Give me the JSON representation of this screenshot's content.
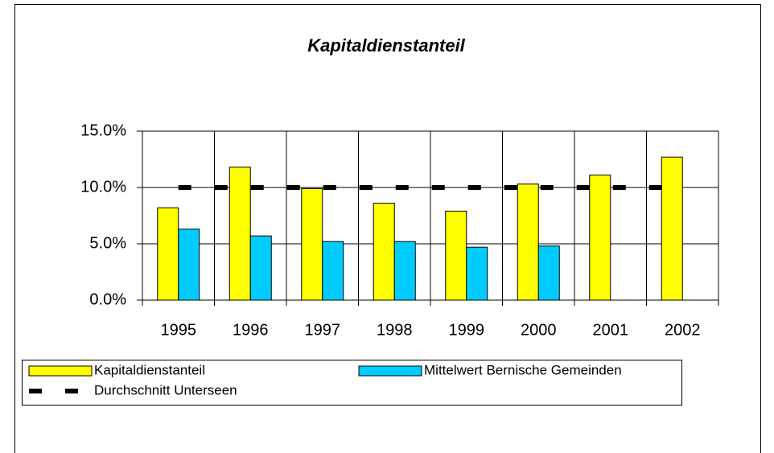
{
  "chart_data": {
    "type": "bar",
    "title": "Kapitaldienstanteil",
    "categories": [
      "1995",
      "1996",
      "1997",
      "1998",
      "1999",
      "2000",
      "2001",
      "2002"
    ],
    "series": [
      {
        "name": "Kapitaldienstanteil",
        "type": "bar",
        "color": "#ffff00",
        "values": [
          8.2,
          11.8,
          9.9,
          8.6,
          7.9,
          10.3,
          11.1,
          12.7
        ]
      },
      {
        "name": "Mittelwert Bernische Gemeinden",
        "type": "bar",
        "color": "#00ccff",
        "values": [
          6.3,
          5.7,
          5.2,
          5.2,
          4.7,
          4.8,
          null,
          null
        ]
      },
      {
        "name": "Durchschnitt Unterseen",
        "type": "line",
        "color": "#000000",
        "values": [
          10,
          10,
          10,
          10,
          10,
          10,
          10,
          10
        ]
      }
    ],
    "ylim": [
      0,
      15
    ],
    "yticks": [
      {
        "value": 0,
        "label": "0.0%"
      },
      {
        "value": 5,
        "label": "5.0%"
      },
      {
        "value": 10,
        "label": "10.0%"
      },
      {
        "value": 15,
        "label": "15.0%"
      }
    ],
    "grid": true
  }
}
